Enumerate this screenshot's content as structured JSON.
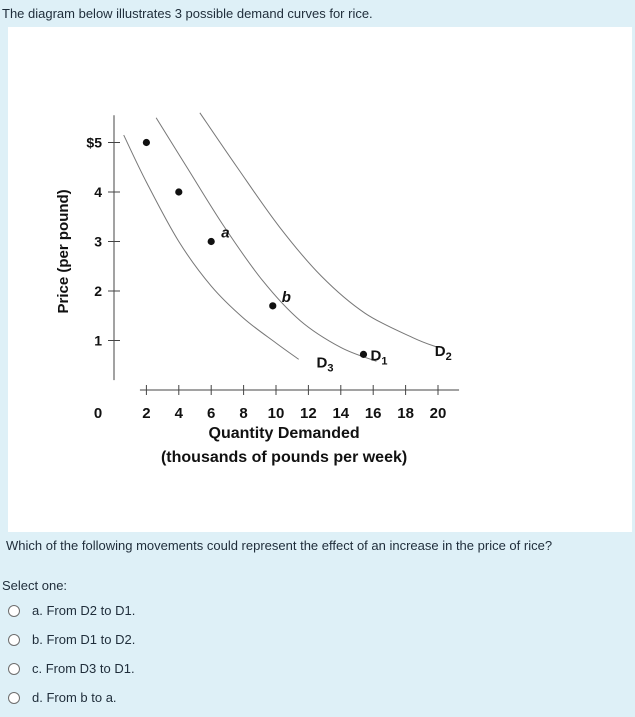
{
  "intro_text": "The diagram below illustrates 3 possible demand curves for rice.",
  "question_text": "Which of the following movements could represent the effect of an increase in the price of rice?",
  "select_label": "Select one:",
  "options": [
    {
      "label": "a. From D2 to D1."
    },
    {
      "label": "b. From D1 to D2."
    },
    {
      "label": "c. From D3 to D1."
    },
    {
      "label": "d. From b to a."
    }
  ],
  "chart_data": {
    "type": "line",
    "xlabel": "Quantity Demanded",
    "xlabel2": "(thousands of pounds per week)",
    "ylabel": "Price (per pound)",
    "x_ticks": [
      2,
      4,
      6,
      8,
      10,
      12,
      14,
      16,
      18,
      20
    ],
    "x_tick_labels": [
      "2",
      "4",
      "6",
      "8",
      "10",
      "12",
      "14",
      "16",
      "18",
      "20"
    ],
    "y_ticks": [
      1,
      2,
      3,
      4,
      5
    ],
    "y_tick_labels": [
      "1",
      "2",
      "3",
      "4",
      "$5"
    ],
    "origin_label": "0",
    "xlim": [
      0,
      21
    ],
    "ylim": [
      0,
      5.8
    ],
    "series": [
      {
        "name": "D3",
        "label": "D",
        "sub": "3",
        "points": [
          [
            0.6,
            5.15
          ],
          [
            2,
            4.2
          ],
          [
            4,
            3.0
          ],
          [
            6,
            2.1
          ],
          [
            8,
            1.45
          ],
          [
            10,
            0.95
          ],
          [
            11.4,
            0.62
          ]
        ]
      },
      {
        "name": "D1",
        "label": "D",
        "sub": "1",
        "points": [
          [
            2.6,
            5.5
          ],
          [
            4.5,
            4.5
          ],
          [
            6.8,
            3.3
          ],
          [
            9.2,
            2.2
          ],
          [
            11.5,
            1.4
          ],
          [
            14,
            0.86
          ],
          [
            16.2,
            0.58
          ]
        ]
      },
      {
        "name": "D2",
        "label": "D",
        "sub": "2",
        "points": [
          [
            5.3,
            5.6
          ],
          [
            7.6,
            4.5
          ],
          [
            10.2,
            3.3
          ],
          [
            12.8,
            2.3
          ],
          [
            15.5,
            1.55
          ],
          [
            18.5,
            1.05
          ],
          [
            20,
            0.86
          ]
        ]
      }
    ],
    "points": [
      {
        "x": 2,
        "y": 5,
        "label": ""
      },
      {
        "x": 4,
        "y": 4,
        "label": ""
      },
      {
        "x": 6,
        "y": 3,
        "label": "a"
      },
      {
        "x": 9.8,
        "y": 1.7,
        "label": "b"
      },
      {
        "x": 15.4,
        "y": 0.72,
        "label": "D₁"
      }
    ]
  }
}
